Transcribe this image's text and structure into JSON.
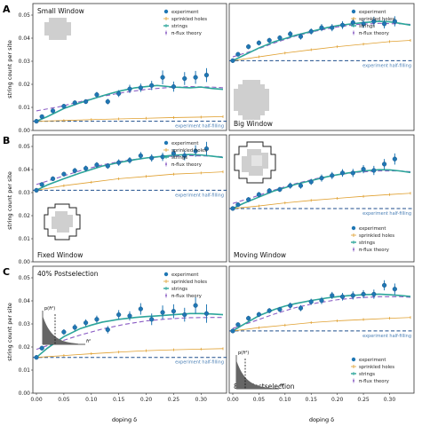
{
  "figure": {
    "row_labels": [
      "A",
      "B",
      "C"
    ],
    "ylabel": "string count per site",
    "xlabel": "doping δ",
    "legend": {
      "experiment": "experiment",
      "sprinkled": "sprinkled holes",
      "strings": "strings",
      "pi_flux": "π-flux theory"
    },
    "half_filling_label": "experiment half-filling",
    "inset_axis": {
      "y": "p(ℏ²)",
      "x": "ℏ²"
    },
    "colors": {
      "experiment": "#1f77b4",
      "sprinkled": "#e0a030",
      "strings": "#2ca59a",
      "pi_flux": "#8a5cc4",
      "half_filling": "#1f4e8c",
      "site_fill": "#cfcfcf"
    }
  },
  "chart_data": [
    {
      "type": "line",
      "title": "Small Window",
      "xlim": [
        0,
        0.34
      ],
      "ylim": [
        0,
        0.055
      ],
      "yticks": [
        "0.00",
        "0.01",
        "0.02",
        "0.03",
        "0.04",
        "0.05"
      ],
      "xticks": [],
      "half_filling": 0.004,
      "experiment": {
        "x": [
          0,
          0.01,
          0.03,
          0.05,
          0.07,
          0.09,
          0.11,
          0.13,
          0.15,
          0.17,
          0.19,
          0.21,
          0.23,
          0.25,
          0.27,
          0.29,
          0.31
        ],
        "y": [
          0.004,
          0.006,
          0.0085,
          0.0105,
          0.012,
          0.0125,
          0.0155,
          0.0125,
          0.016,
          0.018,
          0.0185,
          0.0195,
          0.023,
          0.019,
          0.0225,
          0.023,
          0.024
        ],
        "err": [
          0.0005,
          0.0008,
          0.001,
          0.001,
          0.001,
          0.001,
          0.0012,
          0.0012,
          0.0015,
          0.0018,
          0.0018,
          0.002,
          0.003,
          0.0022,
          0.0028,
          0.0028,
          0.003
        ]
      },
      "sprinkled": {
        "x": [
          0,
          0.05,
          0.1,
          0.15,
          0.2,
          0.25,
          0.3,
          0.34
        ],
        "y": [
          0.004,
          0.0043,
          0.0047,
          0.005,
          0.0053,
          0.0056,
          0.0058,
          0.006
        ]
      },
      "strings": {
        "x": [
          0,
          0.02,
          0.05,
          0.08,
          0.1,
          0.12,
          0.15,
          0.18,
          0.2,
          0.22,
          0.25,
          0.28,
          0.3,
          0.32,
          0.34
        ],
        "y": [
          0.004,
          0.006,
          0.0095,
          0.012,
          0.0135,
          0.015,
          0.017,
          0.0185,
          0.019,
          0.0195,
          0.0188,
          0.0185,
          0.0188,
          0.0182,
          0.0178
        ]
      },
      "pi_flux": {
        "x": [
          0,
          0.04,
          0.08,
          0.12,
          0.16,
          0.2,
          0.24,
          0.28,
          0.32,
          0.34
        ],
        "y": [
          0.0085,
          0.0102,
          0.0125,
          0.0148,
          0.0165,
          0.0178,
          0.0186,
          0.019,
          0.0188,
          0.0185
        ]
      }
    },
    {
      "type": "line",
      "title": "Big Window",
      "xlim": [
        0,
        0.34
      ],
      "ylim": [
        0,
        0.05
      ],
      "yticks": [],
      "xticks": [],
      "half_filling": 0.0275,
      "experiment": {
        "x": [
          0,
          0.01,
          0.03,
          0.05,
          0.07,
          0.09,
          0.11,
          0.13,
          0.15,
          0.17,
          0.19,
          0.21,
          0.23,
          0.25,
          0.27,
          0.29,
          0.31
        ],
        "y": [
          0.0275,
          0.03,
          0.033,
          0.0345,
          0.0355,
          0.0365,
          0.038,
          0.037,
          0.039,
          0.0405,
          0.0405,
          0.0415,
          0.0425,
          0.042,
          0.043,
          0.042,
          0.043
        ],
        "err": [
          0.0006,
          0.0008,
          0.001,
          0.001,
          0.001,
          0.001,
          0.0012,
          0.0012,
          0.0012,
          0.0014,
          0.0014,
          0.0015,
          0.0016,
          0.0016,
          0.0018,
          0.0018,
          0.002
        ]
      },
      "sprinkled": {
        "x": [
          0,
          0.05,
          0.1,
          0.15,
          0.2,
          0.25,
          0.3,
          0.34
        ],
        "y": [
          0.0275,
          0.029,
          0.0305,
          0.0318,
          0.033,
          0.034,
          0.035,
          0.0355
        ]
      },
      "strings": {
        "x": [
          0,
          0.02,
          0.05,
          0.08,
          0.1,
          0.12,
          0.15,
          0.18,
          0.2,
          0.22,
          0.25,
          0.28,
          0.3,
          0.32,
          0.34
        ],
        "y": [
          0.0275,
          0.0295,
          0.0325,
          0.035,
          0.0362,
          0.0375,
          0.039,
          0.0405,
          0.0413,
          0.0418,
          0.0425,
          0.043,
          0.0428,
          0.0422,
          0.0415
        ]
      },
      "pi_flux": {
        "x": [
          0,
          0.04,
          0.08,
          0.12,
          0.16,
          0.2,
          0.24,
          0.28,
          0.32,
          0.34
        ],
        "y": [
          0.029,
          0.0315,
          0.0345,
          0.0372,
          0.0392,
          0.0408,
          0.0418,
          0.0422,
          0.042,
          0.0418
        ]
      }
    },
    {
      "type": "line",
      "title": "Fixed Window",
      "xlim": [
        0,
        0.34
      ],
      "ylim": [
        0,
        0.055
      ],
      "yticks": [
        "0.00",
        "0.01",
        "0.02",
        "0.03",
        "0.04",
        "0.05"
      ],
      "xticks": [],
      "half_filling": 0.031,
      "experiment": {
        "x": [
          0,
          0.01,
          0.03,
          0.05,
          0.07,
          0.09,
          0.11,
          0.13,
          0.15,
          0.17,
          0.19,
          0.21,
          0.23,
          0.25,
          0.27,
          0.29,
          0.31
        ],
        "y": [
          0.031,
          0.0335,
          0.036,
          0.038,
          0.0395,
          0.0405,
          0.042,
          0.0415,
          0.043,
          0.044,
          0.046,
          0.045,
          0.0455,
          0.047,
          0.046,
          0.048,
          0.049
        ],
        "err": [
          0.0008,
          0.001,
          0.001,
          0.001,
          0.0012,
          0.0012,
          0.0012,
          0.0012,
          0.0014,
          0.0014,
          0.0016,
          0.0016,
          0.0018,
          0.0018,
          0.002,
          0.0025,
          0.003
        ]
      },
      "sprinkled": {
        "x": [
          0,
          0.05,
          0.1,
          0.15,
          0.2,
          0.25,
          0.3,
          0.34
        ],
        "y": [
          0.031,
          0.033,
          0.0345,
          0.036,
          0.037,
          0.038,
          0.0385,
          0.039
        ]
      },
      "strings": {
        "x": [
          0,
          0.02,
          0.05,
          0.08,
          0.1,
          0.12,
          0.15,
          0.18,
          0.2,
          0.22,
          0.25,
          0.28,
          0.3,
          0.32,
          0.34
        ],
        "y": [
          0.031,
          0.0333,
          0.036,
          0.0385,
          0.04,
          0.0415,
          0.043,
          0.0443,
          0.045,
          0.0455,
          0.0462,
          0.0465,
          0.0463,
          0.0458,
          0.0452
        ]
      },
      "pi_flux": {
        "x": [
          0,
          0.04,
          0.08,
          0.12,
          0.16,
          0.2,
          0.24,
          0.28,
          0.32,
          0.34
        ],
        "y": [
          0.0335,
          0.0365,
          0.0395,
          0.042,
          0.0438,
          0.045,
          0.0457,
          0.046,
          0.0458,
          0.0455
        ]
      }
    },
    {
      "type": "line",
      "title": "Moving Window",
      "xlim": [
        0,
        0.34
      ],
      "ylim": [
        0,
        0.05
      ],
      "yticks": [],
      "xticks": [],
      "half_filling": 0.021,
      "experiment": {
        "x": [
          0,
          0.01,
          0.03,
          0.05,
          0.07,
          0.09,
          0.11,
          0.13,
          0.15,
          0.17,
          0.19,
          0.21,
          0.23,
          0.25,
          0.27,
          0.29,
          0.31
        ],
        "y": [
          0.021,
          0.0225,
          0.0245,
          0.0265,
          0.028,
          0.0285,
          0.03,
          0.03,
          0.0315,
          0.033,
          0.034,
          0.035,
          0.035,
          0.0365,
          0.036,
          0.0385,
          0.0405
        ],
        "err": [
          0.0006,
          0.0008,
          0.001,
          0.001,
          0.001,
          0.001,
          0.0012,
          0.0012,
          0.0012,
          0.0014,
          0.0014,
          0.0015,
          0.0016,
          0.0016,
          0.0018,
          0.002,
          0.0022
        ]
      },
      "sprinkled": {
        "x": [
          0,
          0.05,
          0.1,
          0.15,
          0.2,
          0.25,
          0.3,
          0.34
        ],
        "y": [
          0.021,
          0.022,
          0.0232,
          0.0242,
          0.025,
          0.0258,
          0.0265,
          0.027
        ]
      },
      "strings": {
        "x": [
          0,
          0.02,
          0.05,
          0.08,
          0.1,
          0.12,
          0.15,
          0.18,
          0.2,
          0.22,
          0.25,
          0.28,
          0.3,
          0.32,
          0.34
        ],
        "y": [
          0.021,
          0.023,
          0.0255,
          0.028,
          0.0292,
          0.0305,
          0.032,
          0.0335,
          0.0343,
          0.035,
          0.0358,
          0.0363,
          0.0362,
          0.0358,
          0.0352
        ]
      },
      "pi_flux": {
        "x": [
          0,
          0.04,
          0.08,
          0.12,
          0.16,
          0.2,
          0.24,
          0.28,
          0.32,
          0.34
        ],
        "y": [
          0.023,
          0.0255,
          0.0283,
          0.0308,
          0.0328,
          0.0343,
          0.0353,
          0.0358,
          0.0358,
          0.0355
        ]
      }
    },
    {
      "type": "line",
      "title": "40% Postselection",
      "xlim": [
        0,
        0.34
      ],
      "ylim": [
        0,
        0.055
      ],
      "yticks": [
        "0.00",
        "0.01",
        "0.02",
        "0.03",
        "0.04",
        "0.05"
      ],
      "xticks": [
        "0.00",
        "0.05",
        "0.10",
        "0.15",
        "0.20",
        "0.25",
        "0.30"
      ],
      "half_filling": 0.0155,
      "experiment": {
        "x": [
          0,
          0.01,
          0.03,
          0.05,
          0.07,
          0.09,
          0.11,
          0.13,
          0.15,
          0.17,
          0.19,
          0.21,
          0.23,
          0.25,
          0.27,
          0.29,
          0.31
        ],
        "y": [
          0.0155,
          0.0195,
          0.0235,
          0.0265,
          0.0285,
          0.0305,
          0.032,
          0.0275,
          0.034,
          0.0335,
          0.0365,
          0.032,
          0.035,
          0.0355,
          0.034,
          0.038,
          0.0345
        ],
        "err": [
          0.0008,
          0.001,
          0.0012,
          0.0012,
          0.0014,
          0.0015,
          0.0016,
          0.0016,
          0.002,
          0.002,
          0.0025,
          0.0025,
          0.003,
          0.003,
          0.003,
          0.0035,
          0.004
        ]
      },
      "sprinkled": {
        "x": [
          0,
          0.05,
          0.1,
          0.15,
          0.2,
          0.25,
          0.3,
          0.34
        ],
        "y": [
          0.0155,
          0.0163,
          0.0171,
          0.0178,
          0.0184,
          0.0188,
          0.0191,
          0.0193
        ]
      },
      "strings": {
        "x": [
          0,
          0.02,
          0.05,
          0.08,
          0.1,
          0.12,
          0.15,
          0.18,
          0.2,
          0.22,
          0.25,
          0.28,
          0.3,
          0.32,
          0.34
        ],
        "y": [
          0.0155,
          0.0195,
          0.0245,
          0.028,
          0.0295,
          0.0308,
          0.032,
          0.0328,
          0.0332,
          0.0335,
          0.034,
          0.0345,
          0.0345,
          0.0343,
          0.034
        ]
      },
      "pi_flux": {
        "x": [
          0,
          0.04,
          0.08,
          0.12,
          0.16,
          0.2,
          0.24,
          0.28,
          0.32,
          0.34
        ],
        "y": [
          0.019,
          0.0222,
          0.0252,
          0.0278,
          0.0298,
          0.0313,
          0.0322,
          0.0327,
          0.0328,
          0.0328
        ]
      }
    },
    {
      "type": "line",
      "title": "80% Postselection",
      "xlim": [
        0,
        0.34
      ],
      "ylim": [
        0,
        0.05
      ],
      "yticks": [],
      "xticks": [
        "0.00",
        "0.05",
        "0.10",
        "0.15",
        "0.20",
        "0.25",
        "0.30"
      ],
      "half_filling": 0.0245,
      "experiment": {
        "x": [
          0,
          0.01,
          0.03,
          0.05,
          0.07,
          0.09,
          0.11,
          0.13,
          0.15,
          0.17,
          0.19,
          0.21,
          0.23,
          0.25,
          0.27,
          0.29,
          0.31
        ],
        "y": [
          0.0245,
          0.027,
          0.0295,
          0.031,
          0.0325,
          0.033,
          0.0345,
          0.0335,
          0.036,
          0.0365,
          0.0385,
          0.038,
          0.0385,
          0.039,
          0.039,
          0.0425,
          0.041
        ],
        "err": [
          0.0006,
          0.0008,
          0.001,
          0.001,
          0.001,
          0.001,
          0.0012,
          0.0012,
          0.0012,
          0.0014,
          0.0014,
          0.0015,
          0.0016,
          0.0016,
          0.0018,
          0.002,
          0.0022
        ]
      },
      "sprinkled": {
        "x": [
          0,
          0.05,
          0.1,
          0.15,
          0.2,
          0.25,
          0.3,
          0.34
        ],
        "y": [
          0.0245,
          0.0258,
          0.0268,
          0.0278,
          0.0285,
          0.029,
          0.0295,
          0.0298
        ]
      },
      "strings": {
        "x": [
          0,
          0.02,
          0.05,
          0.08,
          0.1,
          0.12,
          0.15,
          0.18,
          0.2,
          0.22,
          0.25,
          0.28,
          0.3,
          0.32,
          0.34
        ],
        "y": [
          0.0245,
          0.027,
          0.0305,
          0.033,
          0.0343,
          0.0353,
          0.0365,
          0.0375,
          0.038,
          0.0384,
          0.0388,
          0.039,
          0.0388,
          0.0385,
          0.0381
        ]
      },
      "pi_flux": {
        "x": [
          0,
          0.04,
          0.08,
          0.12,
          0.16,
          0.2,
          0.24,
          0.28,
          0.32,
          0.34
        ],
        "y": [
          0.0255,
          0.0283,
          0.0312,
          0.0337,
          0.0355,
          0.0368,
          0.0376,
          0.038,
          0.038,
          0.0378
        ]
      }
    }
  ]
}
